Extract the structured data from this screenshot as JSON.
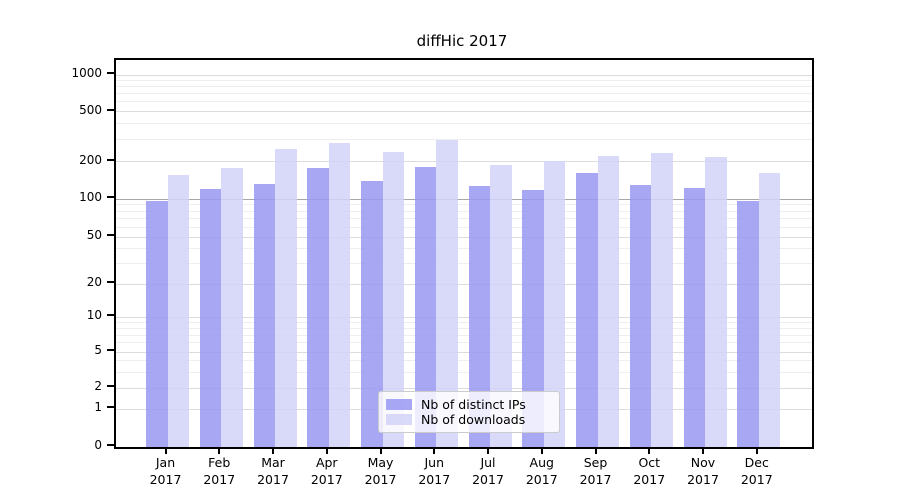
{
  "figure": {
    "title": "diffHic 2017",
    "background": "#ffffff"
  },
  "chart_data": {
    "type": "bar",
    "title": "diffHic 2017",
    "categories": [
      "Jan",
      "Feb",
      "Mar",
      "Apr",
      "May",
      "Jun",
      "Jul",
      "Aug",
      "Sep",
      "Oct",
      "Nov",
      "Dec"
    ],
    "year_label": "2017",
    "series": [
      {
        "name": "Nb of distinct IPs",
        "color": "#9898f2",
        "values": [
          97,
          120,
          133,
          179,
          140,
          181,
          126,
          119,
          162,
          129,
          122,
          96
        ]
      },
      {
        "name": "Nb of downloads",
        "color": "#d2d2f8",
        "values": [
          155,
          178,
          253,
          282,
          238,
          296,
          186,
          201,
          221,
          235,
          219,
          162
        ]
      }
    ],
    "xlabel": "",
    "ylabel": "",
    "y_ticks": [
      0,
      1,
      2,
      5,
      10,
      20,
      50,
      100,
      200,
      500,
      1000
    ],
    "y_scale": "log-like (0,1,2,5,10,20,50,100,200,500,1000)",
    "ylim": [
      0,
      1300
    ],
    "grid": true,
    "legend_position": "bottom-center"
  }
}
